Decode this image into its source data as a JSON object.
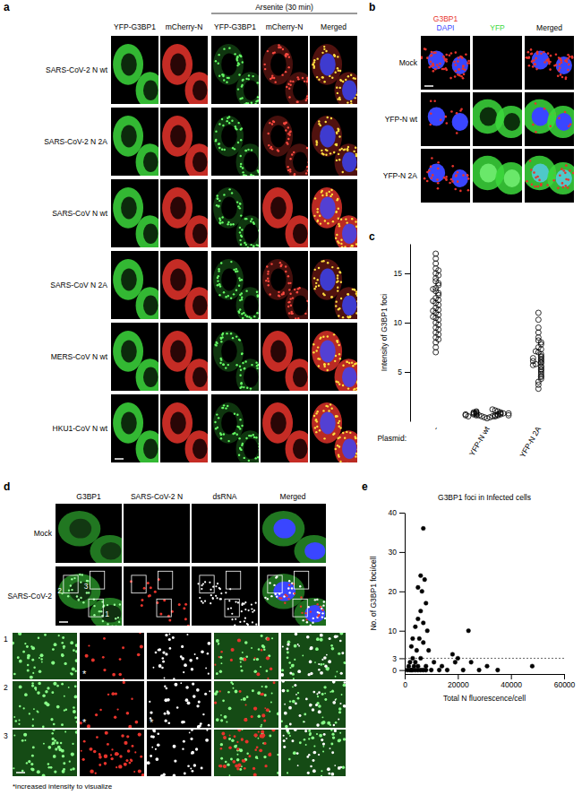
{
  "panel_a": {
    "label": "a",
    "group_header": "Arsenite (30 min)",
    "columns": [
      "YFP-G3BP1",
      "mCherry-N",
      "YFP-G3BP1",
      "mCherry-N",
      "Merged"
    ],
    "rows": [
      "SARS-CoV-2 N wt",
      "SARS-CoV-2 N 2A",
      "SARS-CoV N wt",
      "SARS-CoV N 2A",
      "MERS-CoV N wt",
      "HKU1-CoV N wt"
    ]
  },
  "panel_b": {
    "label": "b",
    "columns": [
      {
        "lines": [
          "G3BP1",
          "DAPI"
        ]
      },
      {
        "lines": [
          "YFP"
        ]
      },
      {
        "lines": [
          "Merged"
        ]
      }
    ],
    "rows": [
      "Mock",
      "YFP-N wt",
      "YFP-N 2A"
    ]
  },
  "panel_d": {
    "label": "d",
    "columns": [
      "G3BP1",
      "SARS-CoV-2 N",
      "dsRNA",
      "Merged"
    ],
    "rows": [
      "Mock",
      "SARS-CoV-2"
    ],
    "zooms": [
      "1",
      "2",
      "3"
    ],
    "asterisk": "*",
    "note": "*increased intensity to visualize"
  },
  "chart_data": [
    {
      "type": "strip",
      "panel_label": "c",
      "y_label": "Intensity of G3BP1 foci",
      "x_label": "Plasmid:",
      "categories": [
        "-",
        "YFP-N wt",
        "YFP-N 2A"
      ],
      "values": [
        [
          17,
          16.5,
          16,
          15.5,
          15.3,
          15,
          14.8,
          14.5,
          14.2,
          14,
          13.8,
          13.5,
          13.2,
          13,
          12.8,
          12.5,
          12.3,
          12,
          11.8,
          11.5,
          11.3,
          11,
          10.8,
          10.5,
          10.3,
          10,
          9.8,
          9.5,
          9.3,
          9,
          8.8,
          8.5,
          8.3,
          8,
          7.5,
          7,
          12.2,
          11.2,
          10.6,
          13.4
        ],
        [
          0.3,
          0.4,
          0.4,
          0.5,
          0.5,
          0.5,
          0.6,
          0.6,
          0.6,
          0.6,
          0.7,
          0.7,
          0.7,
          0.7,
          0.8,
          0.8,
          0.8,
          0.8,
          0.9,
          0.9,
          0.9,
          1.0,
          1.0,
          1.1,
          1.2,
          0.5,
          0.6,
          0.7,
          0.8,
          0.6
        ],
        [
          11,
          10.3,
          9.5,
          9,
          8.5,
          8.2,
          8,
          7.8,
          7.5,
          7.3,
          7,
          6.8,
          6.6,
          6.5,
          6.3,
          6.2,
          6,
          5.9,
          5.8,
          5.6,
          5.5,
          5.3,
          5.2,
          5,
          4.8,
          4.6,
          4.5,
          4.3,
          4,
          3.7,
          3.3,
          6.1,
          5.7,
          6.4,
          7.1
        ]
      ],
      "ylim": [
        0,
        18
      ],
      "yticks": [
        5,
        10,
        15
      ],
      "marker": "circle-open",
      "color": "#000000"
    },
    {
      "type": "scatter",
      "panel_label": "e",
      "title": "G3BP1 foci in Infected cells",
      "x_label": "Total N fluorescence/cell",
      "y_label": "No. of G3BP1 foci/cell",
      "x": [
        7000,
        6000,
        7500,
        5000,
        6500,
        8000,
        6000,
        5000,
        7000,
        4000,
        8500,
        24000,
        3000,
        5500,
        7000,
        2500,
        4500,
        9000,
        18000,
        20000,
        3000,
        6000,
        2000,
        4000,
        11000,
        25000,
        19000,
        1500,
        3500,
        5000,
        8000,
        14000,
        31000,
        48000,
        1000,
        2000,
        3000,
        4000,
        5000,
        6000,
        8000,
        10000,
        13000,
        16000,
        22000,
        28000,
        35000,
        2500,
        7000
      ],
      "values": [
        36,
        24,
        23,
        21,
        20,
        17,
        15,
        13,
        12,
        11,
        10,
        10,
        8,
        8,
        7,
        6,
        5,
        5,
        4,
        3,
        3,
        3,
        2,
        2,
        2,
        2,
        2,
        1,
        1,
        1,
        1,
        1,
        1,
        1,
        0,
        0,
        0,
        0,
        0,
        0,
        0,
        0,
        0,
        0,
        0,
        0,
        0,
        0,
        0
      ],
      "xlim": [
        0,
        60000
      ],
      "xticks": [
        0,
        20000,
        40000,
        60000
      ],
      "ylim": [
        -1,
        40
      ],
      "yticks": [
        0,
        3,
        10,
        20,
        30,
        40
      ],
      "threshold": 3,
      "marker": "circle",
      "color": "#000000"
    }
  ]
}
